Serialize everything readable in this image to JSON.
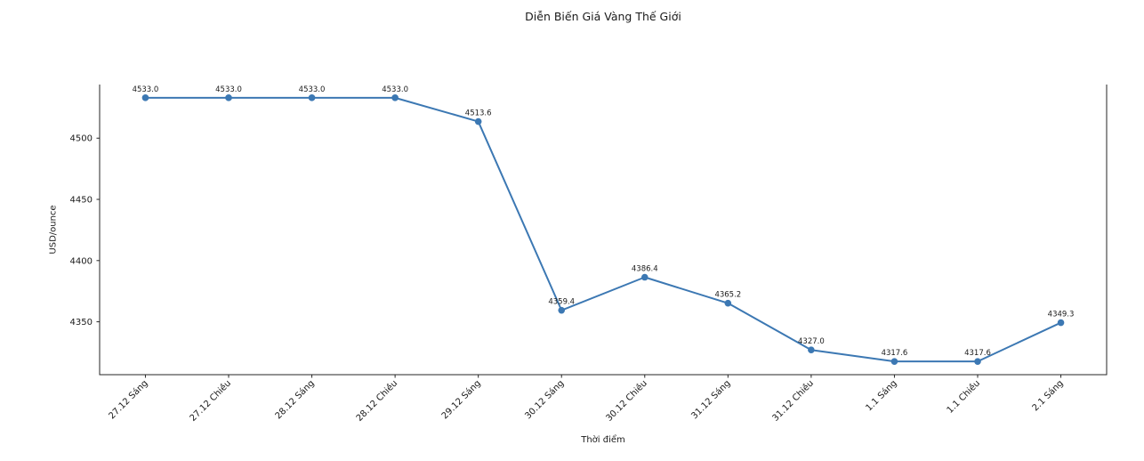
{
  "chart_data": {
    "type": "line",
    "title": "Diễn Biến Giá Vàng Thế Giới",
    "xlabel": "Thời điểm",
    "ylabel": "USD/ounce",
    "categories": [
      "27.12 Sáng",
      "27.12 Chiều",
      "28.12 Sáng",
      "28.12 Chiều",
      "29.12 Sáng",
      "30.12 Sáng",
      "30.12 Chiều",
      "31.12 Sáng",
      "31.12 Chiều",
      "1.1 Sáng",
      "1.1 Chiều",
      "2.1 Sáng"
    ],
    "values": [
      4533.0,
      4533.0,
      4533.0,
      4533.0,
      4513.6,
      4359.4,
      4386.4,
      4365.2,
      4327.0,
      4317.6,
      4317.6,
      4349.3
    ],
    "point_labels": [
      "4533.0",
      "4533.0",
      "4533.0",
      "4533.0",
      "4513.6",
      "4359.4",
      "4386.4",
      "4365.2",
      "4327.0",
      "4317.6",
      "4317.6",
      "4349.3"
    ],
    "yticks": [
      4350,
      4400,
      4450,
      4500
    ],
    "ylim": [
      4306.8,
      4543.8
    ],
    "grid": false,
    "legend": "none",
    "line_color": "#3c78b3",
    "marker_color": "#3c78b3",
    "spine_color": "#262626",
    "text_color": "#1a1a1a",
    "spines": [
      "left",
      "right",
      "bottom"
    ],
    "x_tick_rotation_deg": 45
  }
}
